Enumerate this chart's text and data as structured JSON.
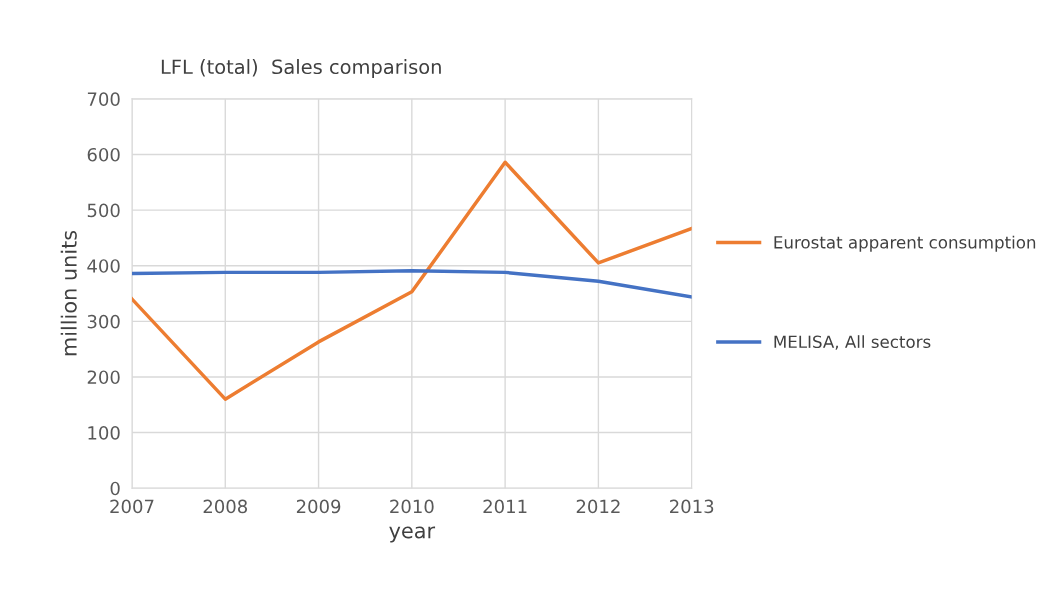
{
  "chart_data": {
    "type": "line",
    "title": "LFL (total)  Sales comparison",
    "xlabel": "year",
    "ylabel": "million units",
    "x": [
      2007,
      2008,
      2009,
      2010,
      2011,
      2012,
      2013
    ],
    "series": [
      {
        "name": "Eurostat apparent consumption",
        "color": "#ed7d31",
        "values": [
          340,
          160,
          263,
          353,
          586,
          405,
          467
        ]
      },
      {
        "name": "MELISA, All sectors",
        "color": "#4472c4",
        "values": [
          386,
          388,
          388,
          391,
          388,
          372,
          344
        ]
      }
    ],
    "xlim": [
      2007,
      2013
    ],
    "xticks": [
      2007,
      2008,
      2009,
      2010,
      2011,
      2012,
      2013
    ],
    "ylim": [
      0,
      700
    ],
    "yticks": [
      0,
      100,
      200,
      300,
      400,
      500,
      600,
      700
    ],
    "grid": true,
    "legend": "right",
    "marker": "none",
    "line_style": "solid"
  }
}
